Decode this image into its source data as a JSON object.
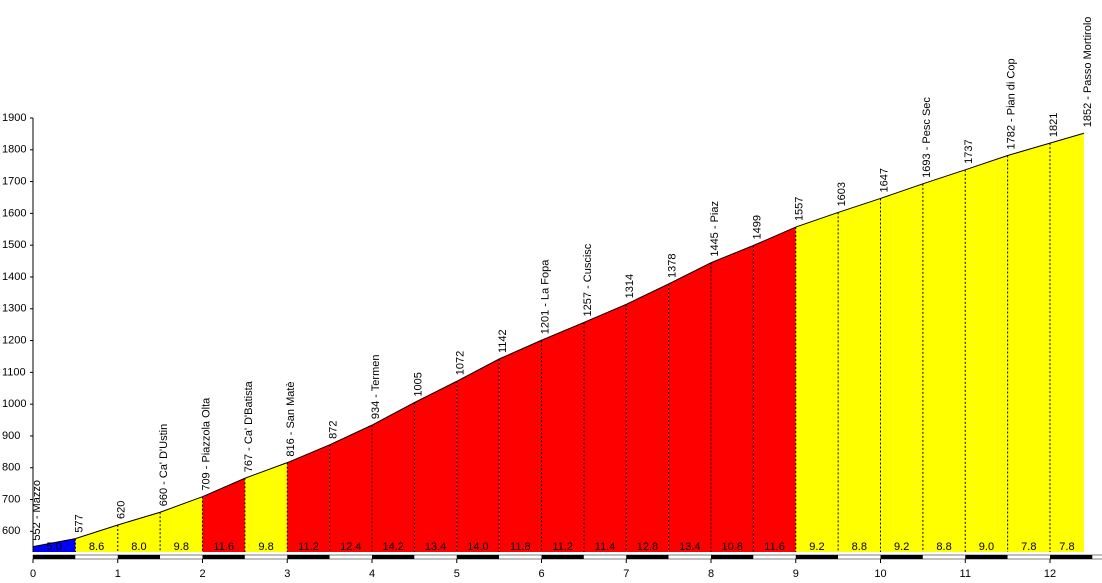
{
  "chart_data": {
    "type": "climb-profile",
    "x": [
      0,
      0.5,
      1,
      1.5,
      2,
      2.5,
      3,
      3.5,
      4,
      4.5,
      5,
      5.5,
      6,
      6.5,
      7,
      7.5,
      8,
      8.5,
      9,
      9.5,
      10,
      10.5,
      11,
      11.5,
      12,
      12.4
    ],
    "values": [
      552,
      577,
      620,
      660,
      709,
      767,
      816,
      872,
      934,
      1005,
      1072,
      1142,
      1201,
      1257,
      1314,
      1378,
      1445,
      1499,
      1557,
      1603,
      1647,
      1693,
      1737,
      1782,
      1821,
      1852
    ],
    "value_labels": [
      "552 - Mazzo",
      "577",
      "620",
      "660 - Ca' D'Ustin",
      "709 - Piazzola Olta",
      "767 - Ca' D'Batista",
      "816 - San Matè",
      "872",
      "934 - Termen",
      "1005",
      "1072",
      "1142",
      "1201 - La Fopa",
      "1257 - Cuscisc",
      "1314",
      "1378",
      "1445 - Piaz",
      "1499",
      "1557",
      "1603",
      "1647",
      "1693 - Pesc Sec",
      "1737",
      "1782 - Pian di Cop",
      "1821",
      "1852 - Passo Mortirolo"
    ],
    "grades": [
      5.0,
      8.6,
      8.0,
      9.8,
      11.6,
      9.8,
      11.2,
      12.4,
      14.2,
      13.4,
      14.0,
      11.8,
      11.2,
      11.4,
      12.8,
      13.4,
      10.8,
      11.6,
      9.2,
      8.8,
      9.2,
      8.8,
      9.0,
      7.8,
      7.8
    ],
    "grade_labels": [
      "5.0",
      "8.6",
      "8.0",
      "9.8",
      "11.6",
      "9.8",
      "11.2",
      "12.4",
      "14.2",
      "13.4",
      "14.0",
      "11.8",
      "11.2",
      "11.4",
      "12.8",
      "13.4",
      "10.8",
      "11.6",
      "9.2",
      "8.8",
      "9.2",
      "8.8",
      "9.0",
      "7.8",
      "7.8"
    ],
    "segment_colors": [
      "#0000ff",
      "#ffff00",
      "#ffff00",
      "#ffff00",
      "#ff0000",
      "#ffff00",
      "#ff0000",
      "#ff0000",
      "#ff0000",
      "#ff0000",
      "#ff0000",
      "#ff0000",
      "#ff0000",
      "#ff0000",
      "#ff0000",
      "#ff0000",
      "#ff0000",
      "#ff0000",
      "#ffff00",
      "#ffff00",
      "#ffff00",
      "#ffff00",
      "#ffff00",
      "#ffff00",
      "#ffff00"
    ],
    "xlim": [
      0,
      13.0
    ],
    "xticks": [
      0,
      1,
      2,
      3,
      4,
      5,
      6,
      7,
      8,
      9,
      10,
      11,
      12
    ],
    "ylim": [
      535,
      1900
    ],
    "yticks": [
      600,
      700,
      800,
      900,
      1000,
      1100,
      1200,
      1300,
      1400,
      1500,
      1600,
      1700,
      1800,
      1900
    ]
  }
}
